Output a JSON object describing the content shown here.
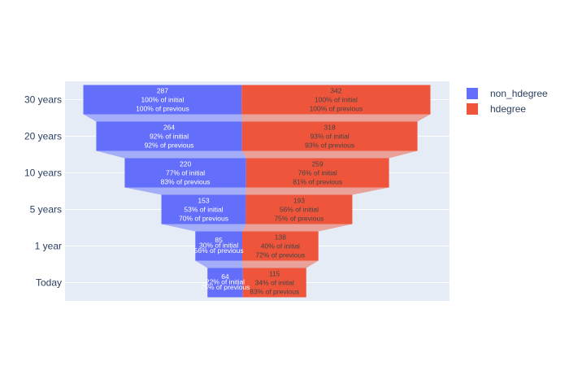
{
  "chart_data": {
    "type": "funnel",
    "categories": [
      "30 years",
      "20 years",
      "10 years",
      "5 years",
      "1 year",
      "Today"
    ],
    "series": [
      {
        "name": "non_hdegree",
        "color": "#636efa",
        "values": [
          287,
          264,
          220,
          153,
          85,
          64
        ],
        "pct_initial": [
          "100% of initial",
          "92% of initial",
          "77% of initial",
          "53% of initial",
          "30% of initial",
          "22% of initial"
        ],
        "pct_previous": [
          "100% of previous",
          "92% of previous",
          "83% of previous",
          "70% of previous",
          "56% of previous",
          "75% of previous"
        ]
      },
      {
        "name": "hdegree",
        "color": "#ef553b",
        "values": [
          342,
          318,
          259,
          193,
          138,
          115
        ],
        "pct_initial": [
          "100% of initial",
          "93% of initial",
          "76% of initial",
          "56% of initial",
          "40% of initial",
          "34% of initial"
        ],
        "pct_previous": [
          "100% of previous",
          "93% of previous",
          "81% of previous",
          "75% of previous",
          "72% of previous",
          "83% of previous"
        ]
      }
    ],
    "legend_position": "top-right",
    "plot_background": "#e5ecf6",
    "grid": true
  }
}
